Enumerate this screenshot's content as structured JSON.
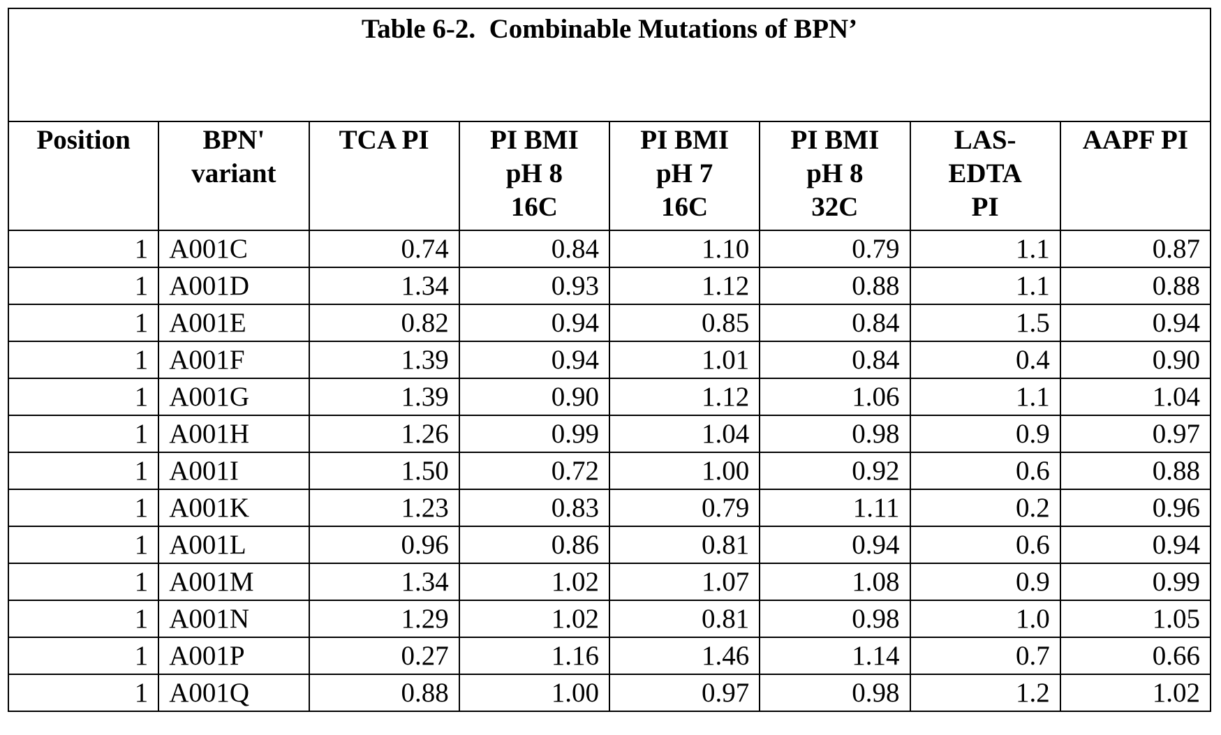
{
  "title": "Table 6-2.  Combinable Mutations of BPN’",
  "table": {
    "header": [
      "Position",
      "BPN'\nvariant",
      "TCA PI",
      "PI BMI\npH 8\n16C",
      "PI BMI\npH 7\n16C",
      "PI BMI\npH 8\n32C",
      "LAS-\nEDTA\nPI",
      "AAPF PI"
    ],
    "rows": [
      [
        "1",
        "A001C",
        "0.74",
        "0.84",
        "1.10",
        "0.79",
        "1.1",
        "0.87"
      ],
      [
        "1",
        "A001D",
        "1.34",
        "0.93",
        "1.12",
        "0.88",
        "1.1",
        "0.88"
      ],
      [
        "1",
        "A001E",
        "0.82",
        "0.94",
        "0.85",
        "0.84",
        "1.5",
        "0.94"
      ],
      [
        "1",
        "A001F",
        "1.39",
        "0.94",
        "1.01",
        "0.84",
        "0.4",
        "0.90"
      ],
      [
        "1",
        "A001G",
        "1.39",
        "0.90",
        "1.12",
        "1.06",
        "1.1",
        "1.04"
      ],
      [
        "1",
        "A001H",
        "1.26",
        "0.99",
        "1.04",
        "0.98",
        "0.9",
        "0.97"
      ],
      [
        "1",
        "A001I",
        "1.50",
        "0.72",
        "1.00",
        "0.92",
        "0.6",
        "0.88"
      ],
      [
        "1",
        "A001K",
        "1.23",
        "0.83",
        "0.79",
        "1.11",
        "0.2",
        "0.96"
      ],
      [
        "1",
        "A001L",
        "0.96",
        "0.86",
        "0.81",
        "0.94",
        "0.6",
        "0.94"
      ],
      [
        "1",
        "A001M",
        "1.34",
        "1.02",
        "1.07",
        "1.08",
        "0.9",
        "0.99"
      ],
      [
        "1",
        "A001N",
        "1.29",
        "1.02",
        "0.81",
        "0.98",
        "1.0",
        "1.05"
      ],
      [
        "1",
        "A001P",
        "0.27",
        "1.16",
        "1.46",
        "1.14",
        "0.7",
        "0.66"
      ],
      [
        "1",
        "A001Q",
        "0.88",
        "1.00",
        "0.97",
        "0.98",
        "1.2",
        "1.02"
      ]
    ]
  }
}
